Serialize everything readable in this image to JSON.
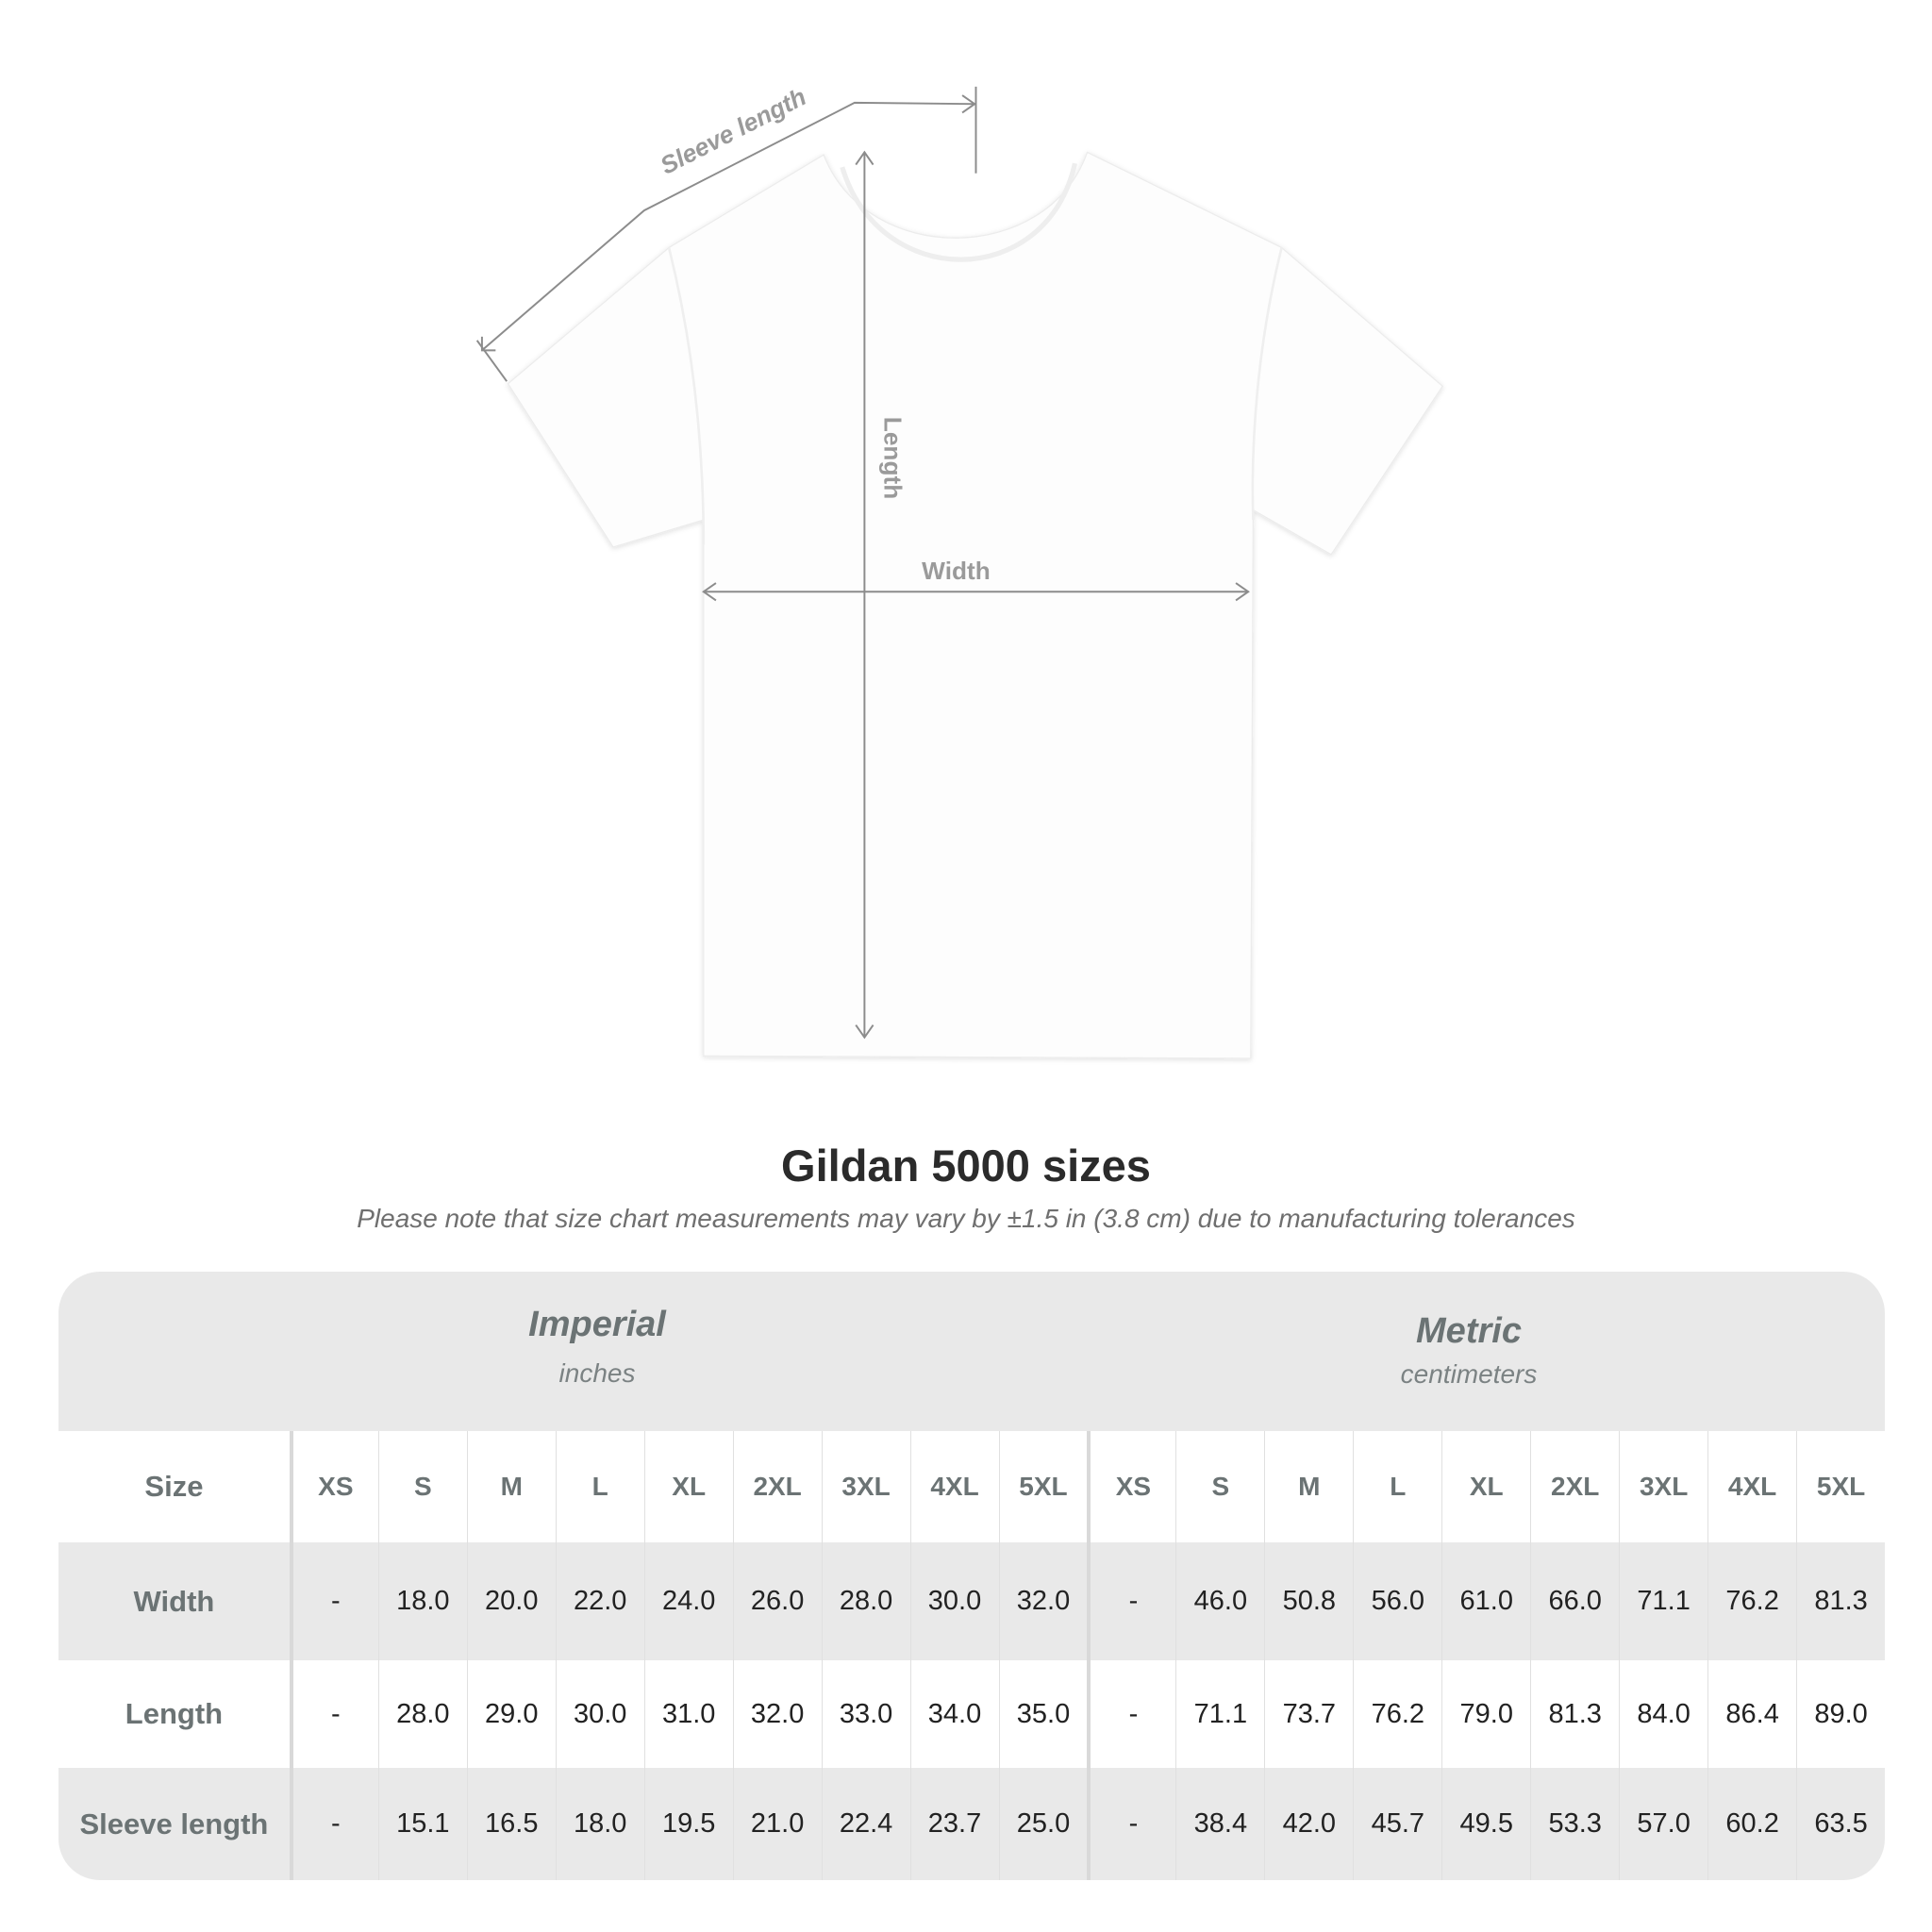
{
  "diagram": {
    "labels": {
      "sleeve": "Sleeve length",
      "length": "Length",
      "width": "Width"
    },
    "colors": {
      "shirt": "#ffffff",
      "lines": "#8c8c8c",
      "label_text": "#9a9a9a"
    }
  },
  "heading": {
    "title": "Gildan 5000 sizes",
    "subtitle": "Please note that size chart measurements may vary by ±1.5 in (3.8 cm) due to manufacturing tolerances"
  },
  "table": {
    "imperial": {
      "name": "Imperial",
      "unit": "inches"
    },
    "metric": {
      "name": "Metric",
      "unit": "centimeters"
    },
    "size_label": "Size",
    "sizes": [
      "XS",
      "S",
      "M",
      "L",
      "XL",
      "2XL",
      "3XL",
      "4XL",
      "5XL"
    ],
    "rows": [
      {
        "label": "Width",
        "imperial": [
          "-",
          "18.0",
          "20.0",
          "22.0",
          "24.0",
          "26.0",
          "28.0",
          "30.0",
          "32.0"
        ],
        "metric": [
          "-",
          "46.0",
          "50.8",
          "56.0",
          "61.0",
          "66.0",
          "71.1",
          "76.2",
          "81.3"
        ]
      },
      {
        "label": "Length",
        "imperial": [
          "-",
          "28.0",
          "29.0",
          "30.0",
          "31.0",
          "32.0",
          "33.0",
          "34.0",
          "35.0"
        ],
        "metric": [
          "-",
          "71.1",
          "73.7",
          "76.2",
          "79.0",
          "81.3",
          "84.0",
          "86.4",
          "89.0"
        ]
      },
      {
        "label": "Sleeve length",
        "imperial": [
          "-",
          "15.1",
          "16.5",
          "18.0",
          "19.5",
          "21.0",
          "22.4",
          "23.7",
          "25.0"
        ],
        "metric": [
          "-",
          "38.4",
          "42.0",
          "45.7",
          "49.5",
          "53.3",
          "57.0",
          "60.2",
          "63.5"
        ]
      }
    ],
    "colors": {
      "band": "#e9e9e9",
      "header_text": "#6b7374",
      "value_text": "#222222"
    }
  }
}
